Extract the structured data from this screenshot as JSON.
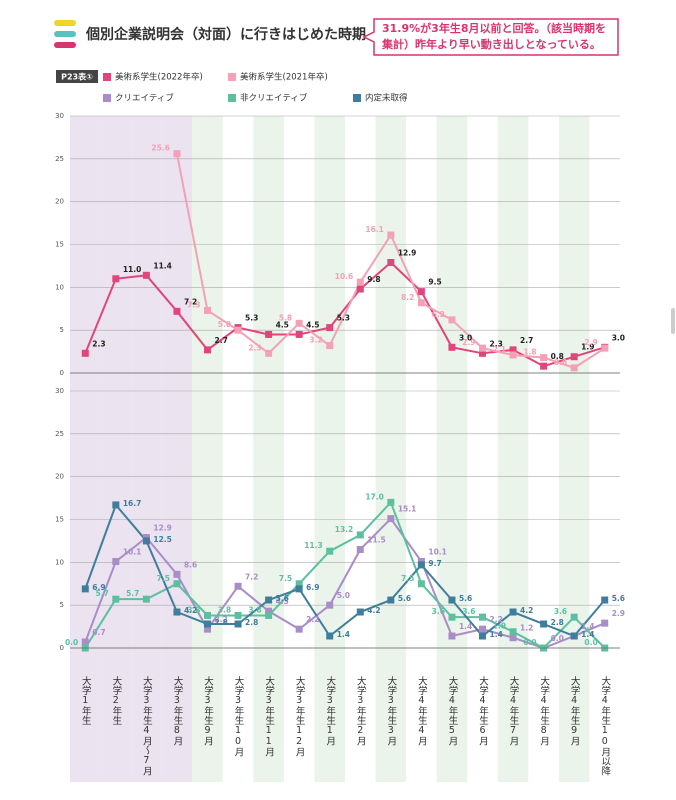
{
  "chart_data": {
    "type": "line",
    "title": "個別企業説明会（対面）に行きはじめた時期",
    "annotation": [
      "31.9%が3年生8月以前と回答。（該当時期を",
      "集計）昨年より早い動き出しとなっている。"
    ],
    "table_label": "P23表①",
    "categories": [
      "大学1年生",
      "大学2年生",
      "大学3年生4月〜7月",
      "大学3年生8月",
      "大学3年生9月",
      "大学3年生10月",
      "大学3年生11月",
      "大学3年生12月",
      "大学3年生1月",
      "大学3年生2月",
      "大学3年生3月",
      "大学4年生4月",
      "大学4年生5月",
      "大学4年生6月",
      "大学4年生7月",
      "大学4年生8月",
      "大学4年生9月",
      "大学4年生10月以降"
    ],
    "grid": true,
    "panels": [
      {
        "ylim": [
          0,
          30
        ],
        "yticks": [
          0,
          5,
          10,
          15,
          20,
          25,
          30
        ],
        "series": [
          {
            "name": "美術系学生(2022年卒)",
            "color": "#e0457b",
            "values": [
              2.3,
              11.0,
              11.4,
              7.2,
              2.7,
              5.3,
              4.5,
              4.5,
              5.3,
              9.8,
              12.9,
              9.5,
              3.0,
              2.3,
              2.7,
              0.8,
              1.9,
              3.0
            ],
            "value_labels": [
              "2.3",
              "11.0",
              "11.4",
              "7.2",
              "2.7",
              "5.3",
              "4.5",
              "4.5",
              "5.3",
              "9.8",
              "12.9",
              "9.5",
              "3.0",
              "2.3",
              "2.7",
              "0.8",
              "1.9",
              "3.0"
            ]
          },
          {
            "name": "美術系学生(2021年卒)",
            "color": "#f4a0b6",
            "values": [
              null,
              null,
              null,
              25.6,
              7.3,
              5.0,
              2.3,
              5.8,
              3.2,
              10.6,
              16.1,
              8.2,
              6.2,
              2.9,
              2.1,
              1.8,
              0.6,
              2.9
            ],
            "value_labels": [
              null,
              null,
              null,
              "25.6",
              "7.3",
              "5.0",
              "2.3",
              "5.8",
              "3.2",
              "10.6",
              "16.1",
              "8.2",
              "6.2",
              "2.9",
              "2.1",
              "1.8",
              "0.6",
              "2.9"
            ]
          }
        ]
      },
      {
        "ylim": [
          0,
          30
        ],
        "yticks": [
          0,
          5,
          10,
          15,
          20,
          25,
          30
        ],
        "series": [
          {
            "name": "クリエイティブ",
            "color": "#a98cc8",
            "values": [
              0.7,
              10.1,
              12.9,
              8.6,
              2.2,
              7.2,
              4.3,
              2.2,
              5.0,
              11.5,
              15.1,
              10.1,
              1.4,
              2.2,
              1.2,
              0.0,
              1.4,
              2.9
            ],
            "value_labels": [
              "0.7",
              "10.1",
              "12.9",
              "8.6",
              "2.2",
              "7.2",
              "4.3",
              "2.2",
              "5.0",
              "11.5",
              "15.1",
              "10.1",
              "1.4",
              "2.2",
              "1.2",
              "0.0",
              "1.4",
              "2.9"
            ]
          },
          {
            "name": "非クリエイティブ",
            "color": "#5cc0a0",
            "values": [
              0.0,
              5.7,
              5.7,
              7.5,
              3.8,
              3.8,
              3.8,
              7.5,
              11.3,
              13.2,
              17.0,
              7.5,
              3.6,
              3.6,
              1.9,
              0.0,
              3.6,
              0.0
            ],
            "value_labels": [
              "0.0",
              "5.7",
              "5.7",
              "7.5",
              "3.8",
              "3.8",
              "3.8",
              "7.5",
              "11.3",
              "13.2",
              "17.0",
              "7.5",
              "3.6",
              "3.6",
              "1.9",
              "0.0",
              "3.6",
              "0.0"
            ]
          },
          {
            "name": "内定未取得",
            "color": "#3f7d9c",
            "values": [
              6.9,
              16.7,
              12.5,
              4.2,
              2.8,
              2.8,
              5.6,
              6.9,
              1.4,
              4.2,
              5.6,
              9.7,
              5.6,
              1.4,
              4.2,
              2.8,
              1.4,
              5.6
            ],
            "value_labels": [
              "6.9",
              "16.7",
              "12.5",
              "4.2",
              "2.8",
              "2.8",
              "5.6",
              "6.9",
              "1.4",
              "4.2",
              "5.6",
              "9.7",
              "5.6",
              "1.4",
              "4.2",
              "2.8",
              "1.4",
              "5.6"
            ]
          }
        ]
      }
    ]
  }
}
